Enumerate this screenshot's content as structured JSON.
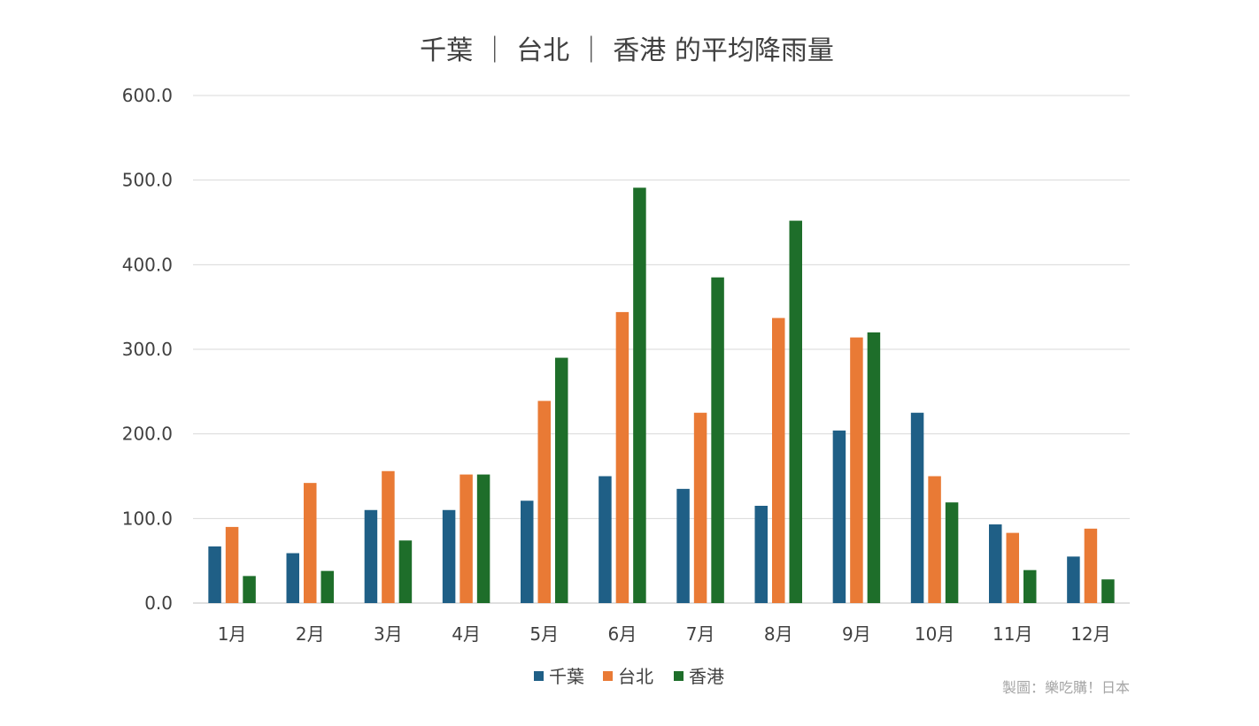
{
  "chart_data": {
    "type": "bar",
    "title": "千葉 ｜ 台北 ｜ 香港 的平均降雨量",
    "credit": "製圖：樂吃購！日本",
    "categories": [
      "1月",
      "2月",
      "3月",
      "4月",
      "5月",
      "6月",
      "7月",
      "8月",
      "9月",
      "10月",
      "11月",
      "12月"
    ],
    "series": [
      {
        "name": "千葉",
        "color": "#1f5f86",
        "values": [
          67,
          59,
          110,
          110,
          121,
          150,
          135,
          115,
          204,
          225,
          93,
          55
        ]
      },
      {
        "name": "台北",
        "color": "#e97a35",
        "values": [
          90,
          142,
          156,
          152,
          239,
          344,
          225,
          337,
          314,
          150,
          83,
          88
        ]
      },
      {
        "name": "香港",
        "color": "#1e6e2a",
        "values": [
          32,
          38,
          74,
          152,
          290,
          491,
          385,
          452,
          320,
          119,
          39,
          28
        ]
      }
    ],
    "ylim": [
      0,
      600
    ],
    "yticks": [
      "0.0",
      "100.0",
      "200.0",
      "300.0",
      "400.0",
      "500.0",
      "600.0"
    ],
    "grid": true,
    "legend_position": "bottom"
  }
}
